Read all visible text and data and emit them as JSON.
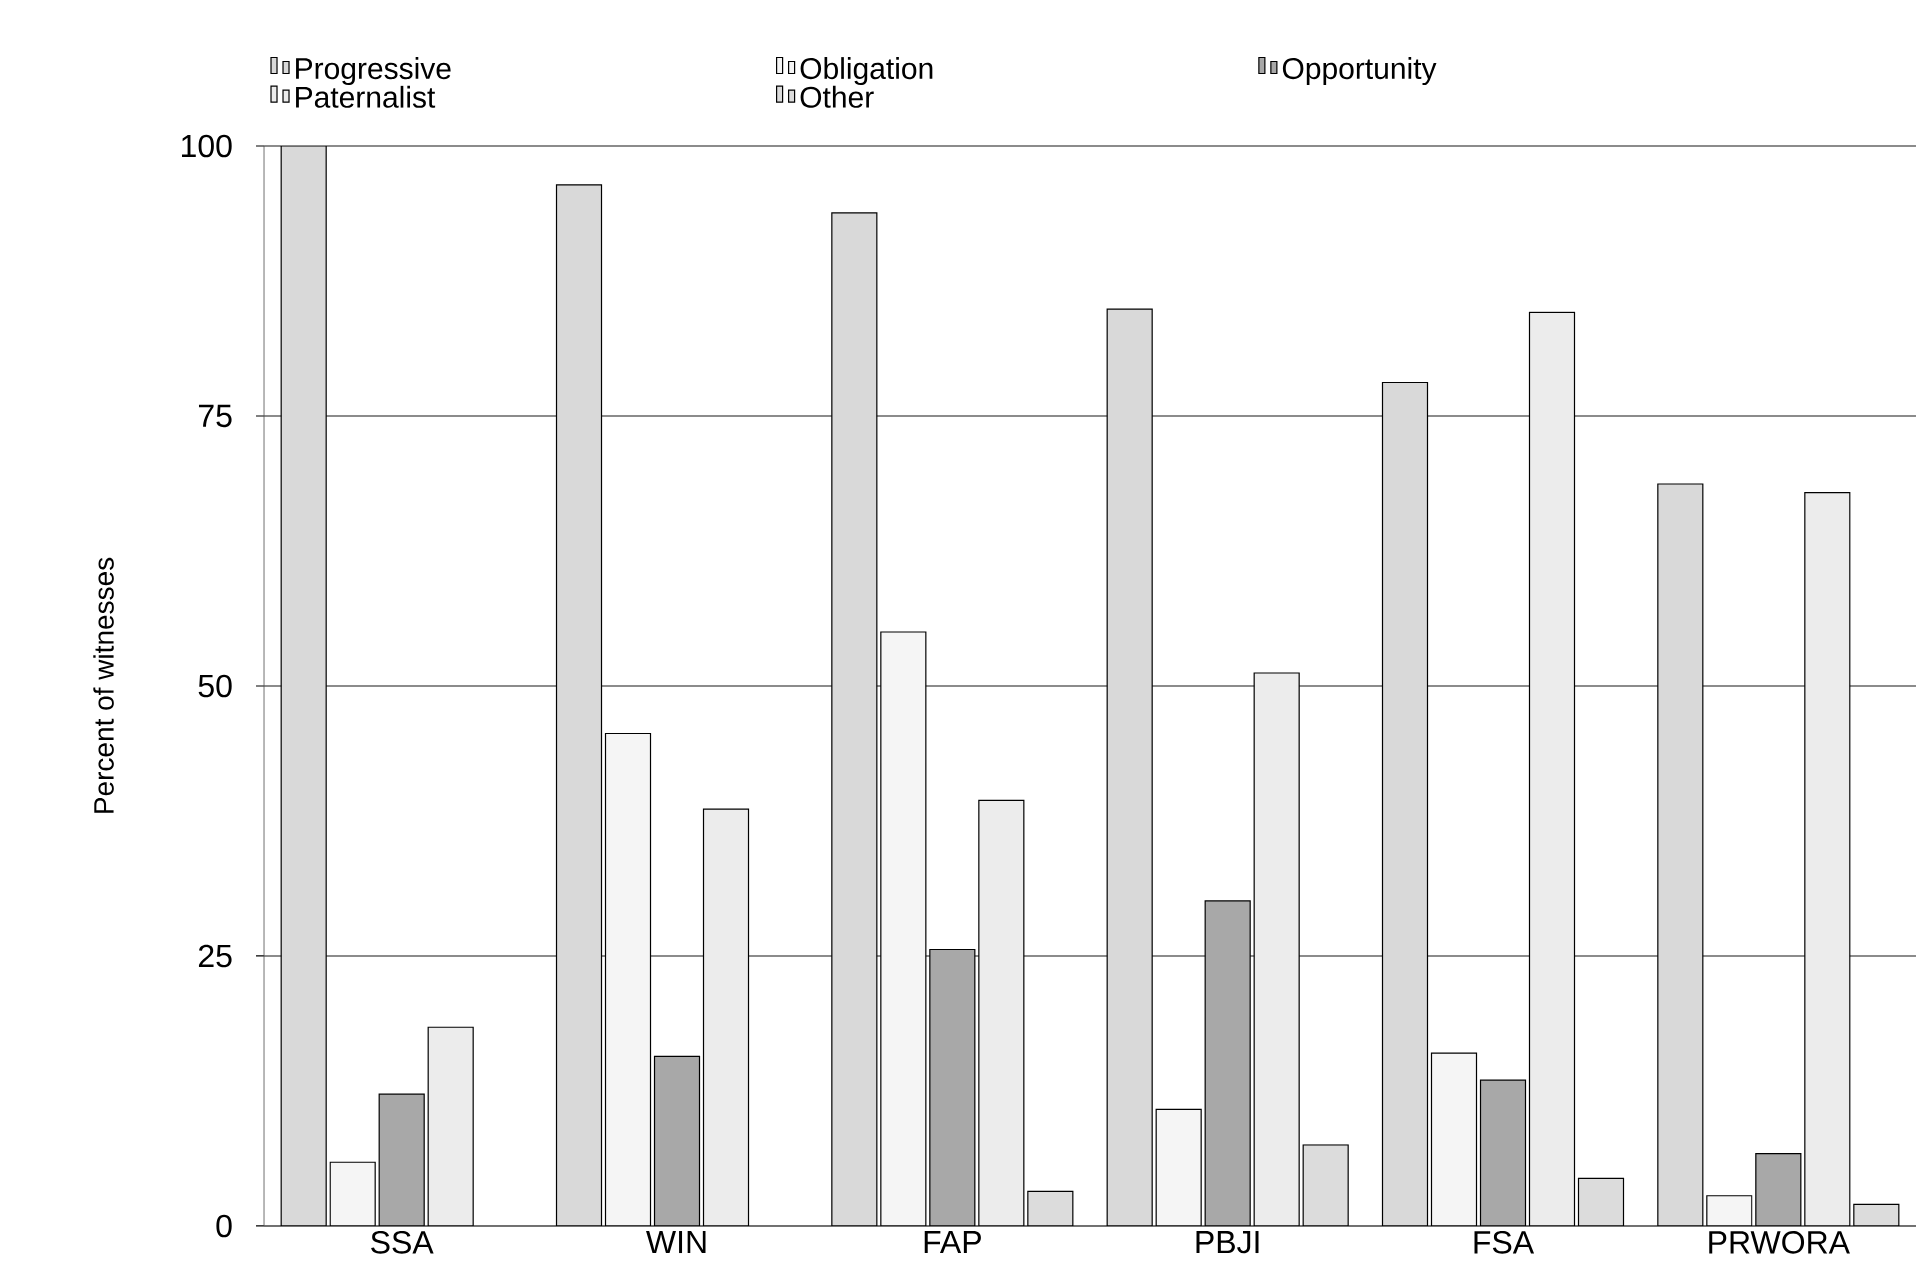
{
  "chart_data": {
    "type": "bar",
    "ylabel": "Percent of witnesses",
    "categories": [
      "SSA",
      "WIN",
      "FAP",
      "PBJI",
      "FSA",
      "PRWORA"
    ],
    "series": [
      {
        "name": "Progressive",
        "color": "#d9d9d9",
        "values": [
          100,
          96.4,
          93.8,
          84.9,
          78.1,
          68.7
        ]
      },
      {
        "name": "Obligation",
        "color": "#f5f5f5",
        "values": [
          5.9,
          45.6,
          55.0,
          10.8,
          16.0,
          2.8
        ]
      },
      {
        "name": "Opportunity",
        "color": "#a8a8a8",
        "values": [
          12.2,
          15.7,
          25.6,
          30.1,
          13.5,
          6.7
        ]
      },
      {
        "name": "Paternalist",
        "color": "#ececec",
        "values": [
          18.4,
          38.6,
          39.4,
          51.2,
          84.6,
          67.9
        ]
      },
      {
        "name": "Other",
        "color": "#dcdcdc",
        "values": [
          null,
          null,
          3.2,
          7.5,
          4.4,
          2.0
        ]
      }
    ],
    "ylim": [
      0,
      100
    ],
    "yticks": [
      0,
      25,
      50,
      75,
      100
    ],
    "grid": "y",
    "legend": "top"
  }
}
